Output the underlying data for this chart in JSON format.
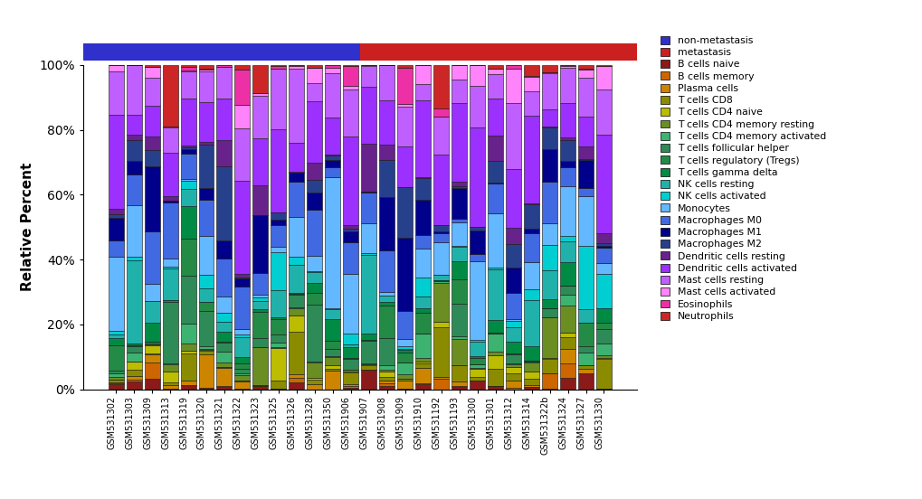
{
  "cell_types": [
    "B cells naive",
    "B cells memory",
    "Plasma cells",
    "T cells CD8",
    "T cells CD4 naive",
    "T cells CD4 memory resting",
    "T cells CD4 memory activated",
    "T cells follicular helper",
    "T cells regulatory (Tregs)",
    "T cells gamma delta",
    "NK cells resting",
    "NK cells activated",
    "Monocytes",
    "Macrophages M0",
    "Macrophages M1",
    "Macrophages M2",
    "Dendritic cells resting",
    "Dendritic cells activated",
    "Mast cells resting",
    "Mast cells activated",
    "Eosinophils",
    "Neutrophils"
  ],
  "colors": [
    "#8B1A1A",
    "#CD6600",
    "#CD8500",
    "#8B8B00",
    "#BCBC00",
    "#6B8E23",
    "#3CB371",
    "#2E8B57",
    "#238B45",
    "#008B45",
    "#20B2AA",
    "#00CED1",
    "#63B8FF",
    "#4169E1",
    "#00008B",
    "#27408B",
    "#68228B",
    "#9B30FF",
    "#BF5FFF",
    "#FF83FA",
    "#EE30A7",
    "#CD2626"
  ],
  "n_bars": 28,
  "n_non_meta": 14,
  "n_meta": 14,
  "non_meta_color": "#3030CC",
  "meta_color": "#CC2020",
  "ylabel": "Relative Percent",
  "bar_edgecolor": "#111111",
  "bar_linewidth": 0.4,
  "background_color": "#FFFFFF",
  "categories": [
    "GSM531302",
    "GSM531303",
    "GSM531309",
    "GSM531313",
    "GSM531319",
    "GSM531320",
    "GSM531321",
    "GSM531322",
    "GSM531323",
    "GSM531325",
    "GSM531326",
    "GSM531328",
    "GSM531350",
    "GSM531906",
    "GSM531907",
    "GSM531908",
    "GSM531909",
    "GSM531910",
    "GSM531192",
    "GSM531193",
    "GSM531300",
    "GSM531301",
    "GSM531312",
    "GSM531314",
    "GSM531322b",
    "GSM531324",
    "GSM531327",
    "GSM531330"
  ]
}
